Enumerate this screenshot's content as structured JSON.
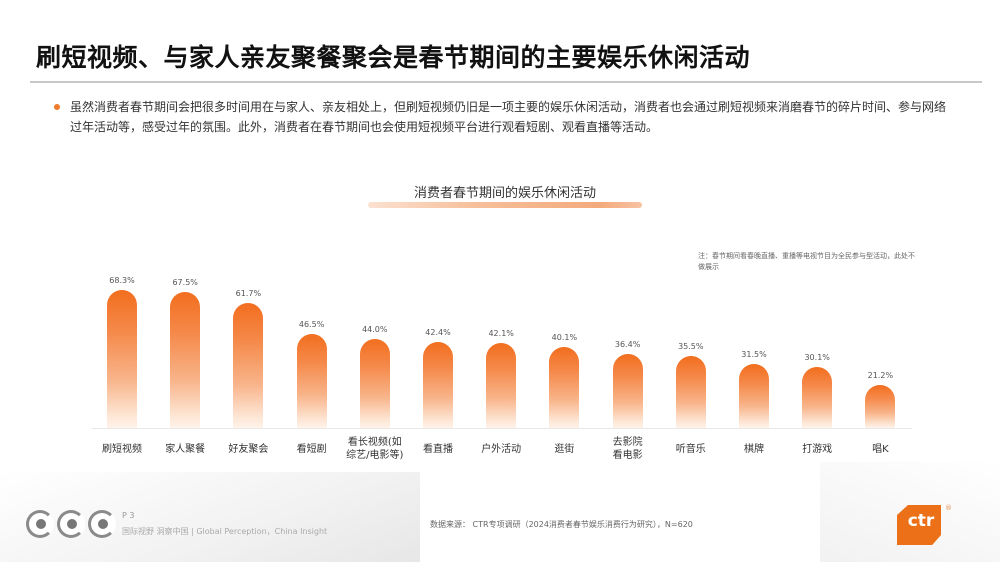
{
  "slide": {
    "title": "刷短视频、与家人亲友聚餐聚会是春节期间的主要娱乐休闲活动",
    "bullet_text": "虽然消费者春节期间会把很多时间用在与家人、亲友相处上，但刷短视频仍旧是一项主要的娱乐休闲活动，消费者也会通过刷短视频来消磨春节的碎片时间、参与网络过年活动等，感受过年的氛围。此外，消费者在春节期间也会使用短视频平台进行观看短剧、观看直播等活动。",
    "note": "注：春节期间看春晚直播、重播等电视节目为全民参与型活动，此处不做展示",
    "page_number": "P 3",
    "tagline": "国际视野  洞察中国 | Global Perception，China Insight",
    "source": "数据来源：  CTR专项调研（2024消费者春节娱乐消费行为研究），N=620",
    "logo_text": "ctr",
    "logo_reg": "®",
    "accent_color": "#ee7a2a"
  },
  "chart_data": {
    "type": "bar",
    "title": "消费者春节期间的娱乐休闲活动",
    "xlabel": "",
    "ylabel": "",
    "ylim": [
      0,
      100
    ],
    "grid": false,
    "legend": null,
    "categories": [
      "刷短视频",
      "家人聚餐",
      "好友聚会",
      "看短剧",
      "看长视频(如综艺/电影等)",
      "看直播",
      "户外活动",
      "逛街",
      "去影院看电影",
      "听音乐",
      "棋牌",
      "打游戏",
      "唱K"
    ],
    "display_labels": [
      "刷短视频",
      "家人聚餐",
      "好友聚会",
      "看短剧",
      "看长视频(如\n综艺/电影等)",
      "看直播",
      "户外活动",
      "逛街",
      "去影院\n看电影",
      "听音乐",
      "棋牌",
      "打游戏",
      "唱K"
    ],
    "values": [
      68.3,
      67.5,
      61.7,
      46.5,
      44.0,
      42.4,
      42.1,
      40.1,
      36.4,
      35.5,
      31.5,
      30.1,
      21.2
    ],
    "value_labels": [
      "68.3%",
      "67.5%",
      "61.7%",
      "46.5%",
      "44.0%",
      "42.4%",
      "42.1%",
      "40.1%",
      "36.4%",
      "35.5%",
      "31.5%",
      "30.1%",
      "21.2%"
    ],
    "bar_color_top": "#f26e1e",
    "bar_color_bottom": "#fff3ea"
  }
}
